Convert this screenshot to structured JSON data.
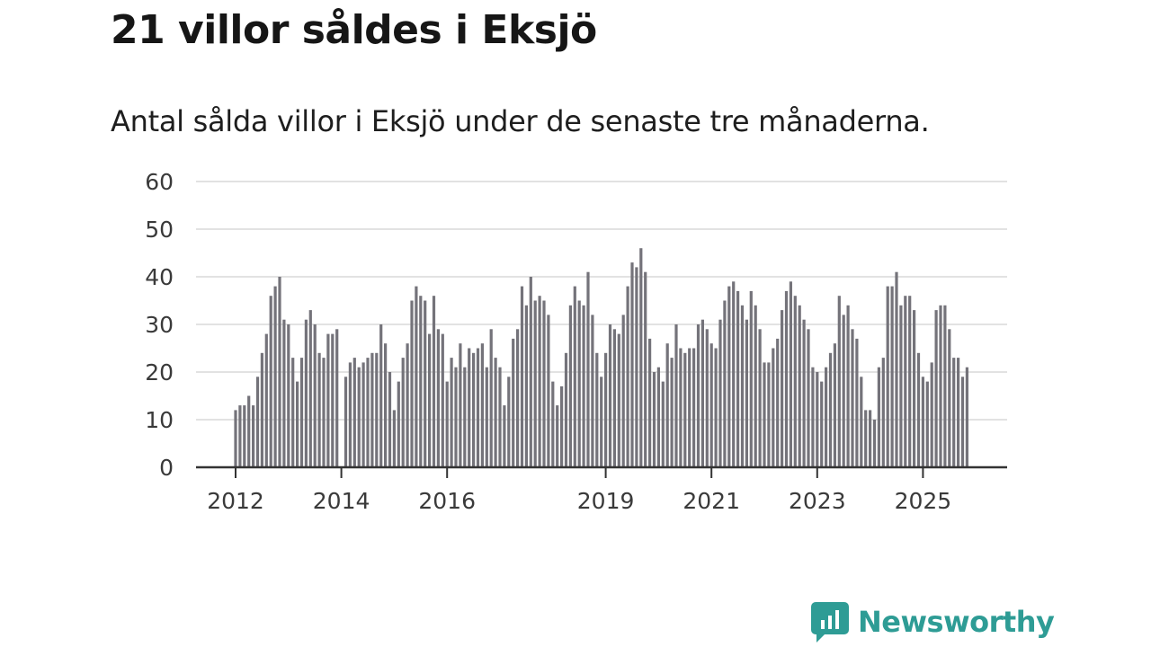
{
  "header": {
    "title": "21 villor såldes i Eksjö",
    "subtitle": "Antal sålda villor i Eksjö under de senaste tre månaderna."
  },
  "brand": {
    "name": "Newsworthy",
    "color": "#2e9c95"
  },
  "colors": {
    "bar": "#74737a",
    "highlight": "#1aa39b",
    "grid": "#d9d9d9",
    "axis": "#333333"
  },
  "chart_data": {
    "type": "bar",
    "title": "21 villor såldes i Eksjö",
    "xlabel": "",
    "ylabel": "",
    "ylim": [
      0,
      60
    ],
    "yticks": [
      "0",
      "10",
      "20",
      "30",
      "40",
      "50",
      "60"
    ],
    "xticks": [
      {
        "label": "2012",
        "index": 0
      },
      {
        "label": "2014",
        "index": 24
      },
      {
        "label": "2016",
        "index": 48
      },
      {
        "label": "2019",
        "index": 84
      },
      {
        "label": "2021",
        "index": 108
      },
      {
        "label": "2023",
        "index": 132
      },
      {
        "label": "2025",
        "index": 156
      }
    ],
    "start": "2012-01",
    "values": [
      12,
      13,
      13,
      15,
      13,
      19,
      24,
      28,
      36,
      38,
      40,
      31,
      30,
      23,
      18,
      23,
      31,
      33,
      30,
      24,
      23,
      28,
      28,
      29,
      null,
      19,
      22,
      23,
      21,
      22,
      23,
      24,
      24,
      30,
      26,
      20,
      12,
      18,
      23,
      26,
      35,
      38,
      36,
      35,
      28,
      36,
      29,
      28,
      18,
      23,
      21,
      26,
      21,
      25,
      24,
      25,
      26,
      21,
      29,
      23,
      21,
      13,
      19,
      27,
      29,
      38,
      34,
      40,
      35,
      36,
      35,
      32,
      18,
      13,
      17,
      24,
      34,
      38,
      35,
      34,
      41,
      32,
      24,
      19,
      24,
      30,
      29,
      28,
      32,
      38,
      43,
      42,
      46,
      41,
      27,
      20,
      21,
      18,
      26,
      23,
      30,
      25,
      24,
      25,
      25,
      30,
      31,
      29,
      26,
      25,
      31,
      35,
      38,
      39,
      37,
      34,
      31,
      37,
      34,
      29,
      22,
      22,
      25,
      27,
      33,
      37,
      39,
      36,
      34,
      31,
      29,
      21,
      20,
      18,
      21,
      24,
      26,
      36,
      32,
      34,
      29,
      27,
      19,
      12,
      12,
      10,
      21,
      23,
      38,
      38,
      41,
      34,
      36,
      36,
      33,
      24,
      19,
      18,
      22,
      33,
      34,
      34,
      29,
      23,
      23,
      19,
      21
    ],
    "highlight_index": 170,
    "annotation": "21"
  }
}
